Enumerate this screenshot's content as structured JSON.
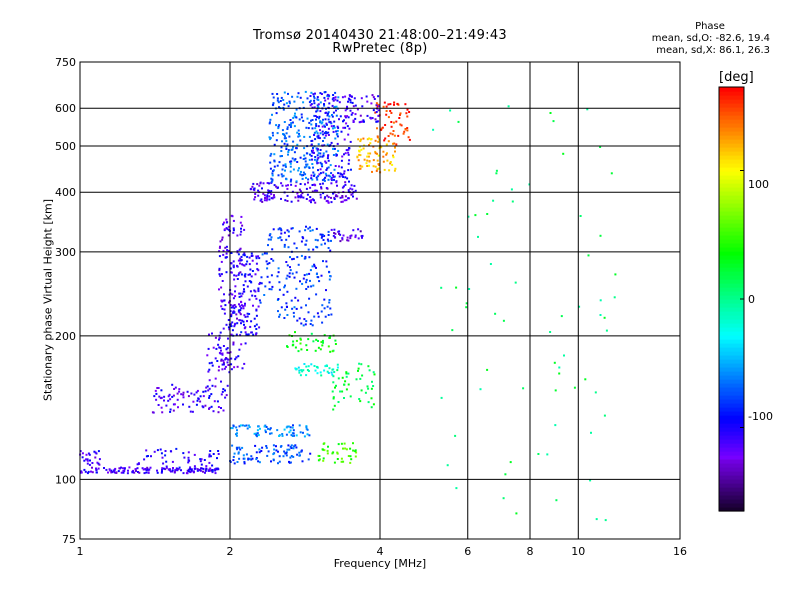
{
  "title": {
    "line1": "Tromsø 20140430 21:48:00–21:49:43",
    "line2": "RwPretec (8p)"
  },
  "phase_box": {
    "header": "Phase",
    "line1": "mean, sd,O: -82.6, 19.4",
    "line2": "mean, sd,X:  86.1, 26.3"
  },
  "colorbar": {
    "unit": "[deg]",
    "ticks": [
      "100",
      "0",
      "-100"
    ],
    "range": [
      -165,
      165
    ],
    "colormap": "rainbow"
  },
  "chart_data": {
    "type": "scatter",
    "xlabel": "Frequency [MHz]",
    "ylabel": "Stationary phase Virtual Height [km]",
    "x_scale": "log",
    "y_scale": "log",
    "xlim": [
      1,
      16
    ],
    "ylim": [
      75,
      750
    ],
    "x_ticks": [
      1,
      2,
      4,
      6,
      8,
      10,
      16
    ],
    "x_tick_labels": [
      "1",
      "2",
      "4",
      "6",
      "8",
      "10",
      "16"
    ],
    "y_ticks": [
      75,
      100,
      200,
      300,
      400,
      500,
      600,
      750
    ],
    "y_tick_labels": [
      "75",
      "100",
      "200",
      "300",
      "400",
      "500",
      "600",
      "750"
    ],
    "grid": true,
    "clusters": [
      {
        "f": [
          1.0,
          1.9
        ],
        "h": [
          103,
          106
        ],
        "phase": -112,
        "n": 140
      },
      {
        "f": [
          1.0,
          1.1
        ],
        "h": [
          106,
          115
        ],
        "phase": -108,
        "n": 25
      },
      {
        "f": [
          1.3,
          1.9
        ],
        "h": [
          104,
          116
        ],
        "phase": -105,
        "n": 60
      },
      {
        "f": [
          1.4,
          2.0
        ],
        "h": [
          138,
          158
        ],
        "phase": -110,
        "n": 90
      },
      {
        "f": [
          1.8,
          2.0
        ],
        "h": [
          160,
          205
        ],
        "phase": -108,
        "n": 40
      },
      {
        "f": [
          1.9,
          2.15
        ],
        "h": [
          170,
          360
        ],
        "phase": -112,
        "n": 160
      },
      {
        "f": [
          2.0,
          2.3
        ],
        "h": [
          200,
          300
        ],
        "phase": -100,
        "n": 120
      },
      {
        "f": [
          2.0,
          2.9
        ],
        "h": [
          108,
          118
        ],
        "phase": -75,
        "n": 90
      },
      {
        "f": [
          2.0,
          2.9
        ],
        "h": [
          123,
          130
        ],
        "phase": -60,
        "n": 70
      },
      {
        "f": [
          2.3,
          3.2
        ],
        "h": [
          210,
          340
        ],
        "phase": -80,
        "n": 200
      },
      {
        "f": [
          2.2,
          3.6
        ],
        "h": [
          380,
          420
        ],
        "phase": -115,
        "n": 160
      },
      {
        "f": [
          2.4,
          3.3
        ],
        "h": [
          420,
          650
        ],
        "phase": -70,
        "n": 320
      },
      {
        "f": [
          2.9,
          3.5
        ],
        "h": [
          420,
          650
        ],
        "phase": -105,
        "n": 150
      },
      {
        "f": [
          2.6,
          3.3
        ],
        "h": [
          185,
          205
        ],
        "phase": 30,
        "n": 40
      },
      {
        "f": [
          2.7,
          3.3
        ],
        "h": [
          165,
          175
        ],
        "phase": -20,
        "n": 40
      },
      {
        "f": [
          3.0,
          3.6
        ],
        "h": [
          108,
          120
        ],
        "phase": 50,
        "n": 40
      },
      {
        "f": [
          3.2,
          3.9
        ],
        "h": [
          140,
          175
        ],
        "phase": 20,
        "n": 50
      },
      {
        "f": [
          3.2,
          3.7
        ],
        "h": [
          315,
          335
        ],
        "phase": -120,
        "n": 30
      },
      {
        "f": [
          3.6,
          4.3
        ],
        "h": [
          440,
          520
        ],
        "phase": 120,
        "n": 80
      },
      {
        "f": [
          3.9,
          4.6
        ],
        "h": [
          500,
          620
        ],
        "phase": 150,
        "n": 60
      },
      {
        "f": [
          3.4,
          4.0
        ],
        "h": [
          560,
          640
        ],
        "phase": -110,
        "n": 60
      },
      {
        "f": [
          5.0,
          12.0
        ],
        "h": [
          80,
          650
        ],
        "phase": 10,
        "n": 70
      }
    ]
  }
}
